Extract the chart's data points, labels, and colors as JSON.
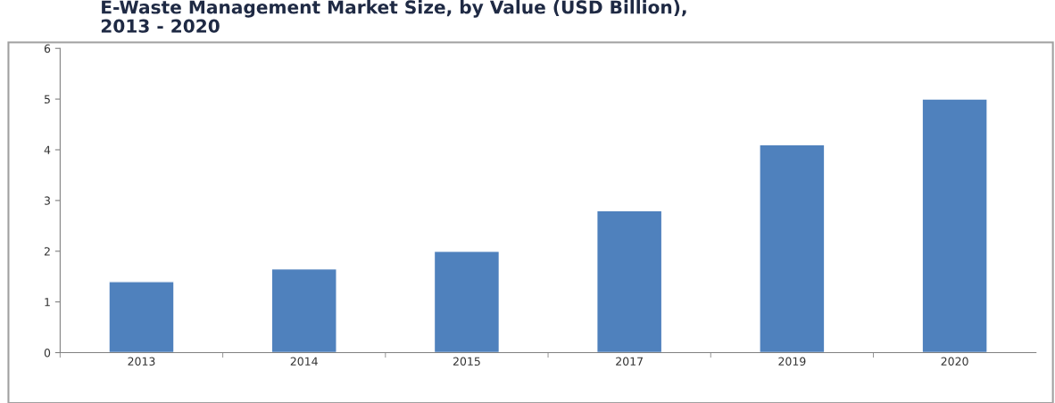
{
  "chart_data": {
    "type": "bar",
    "title": "E-Waste Management Market Size, by Value (USD Billion),\n2013 - 2020",
    "categories": [
      "2013",
      "2014",
      "2015",
      "2017",
      "2019",
      "2020"
    ],
    "values": [
      1.4,
      1.65,
      2.0,
      2.8,
      4.1,
      5.0
    ],
    "color": "#4f81bd",
    "ylim": [
      0,
      6
    ],
    "yticks": [
      0,
      1,
      2,
      3,
      4,
      5,
      6
    ],
    "grid": false
  }
}
